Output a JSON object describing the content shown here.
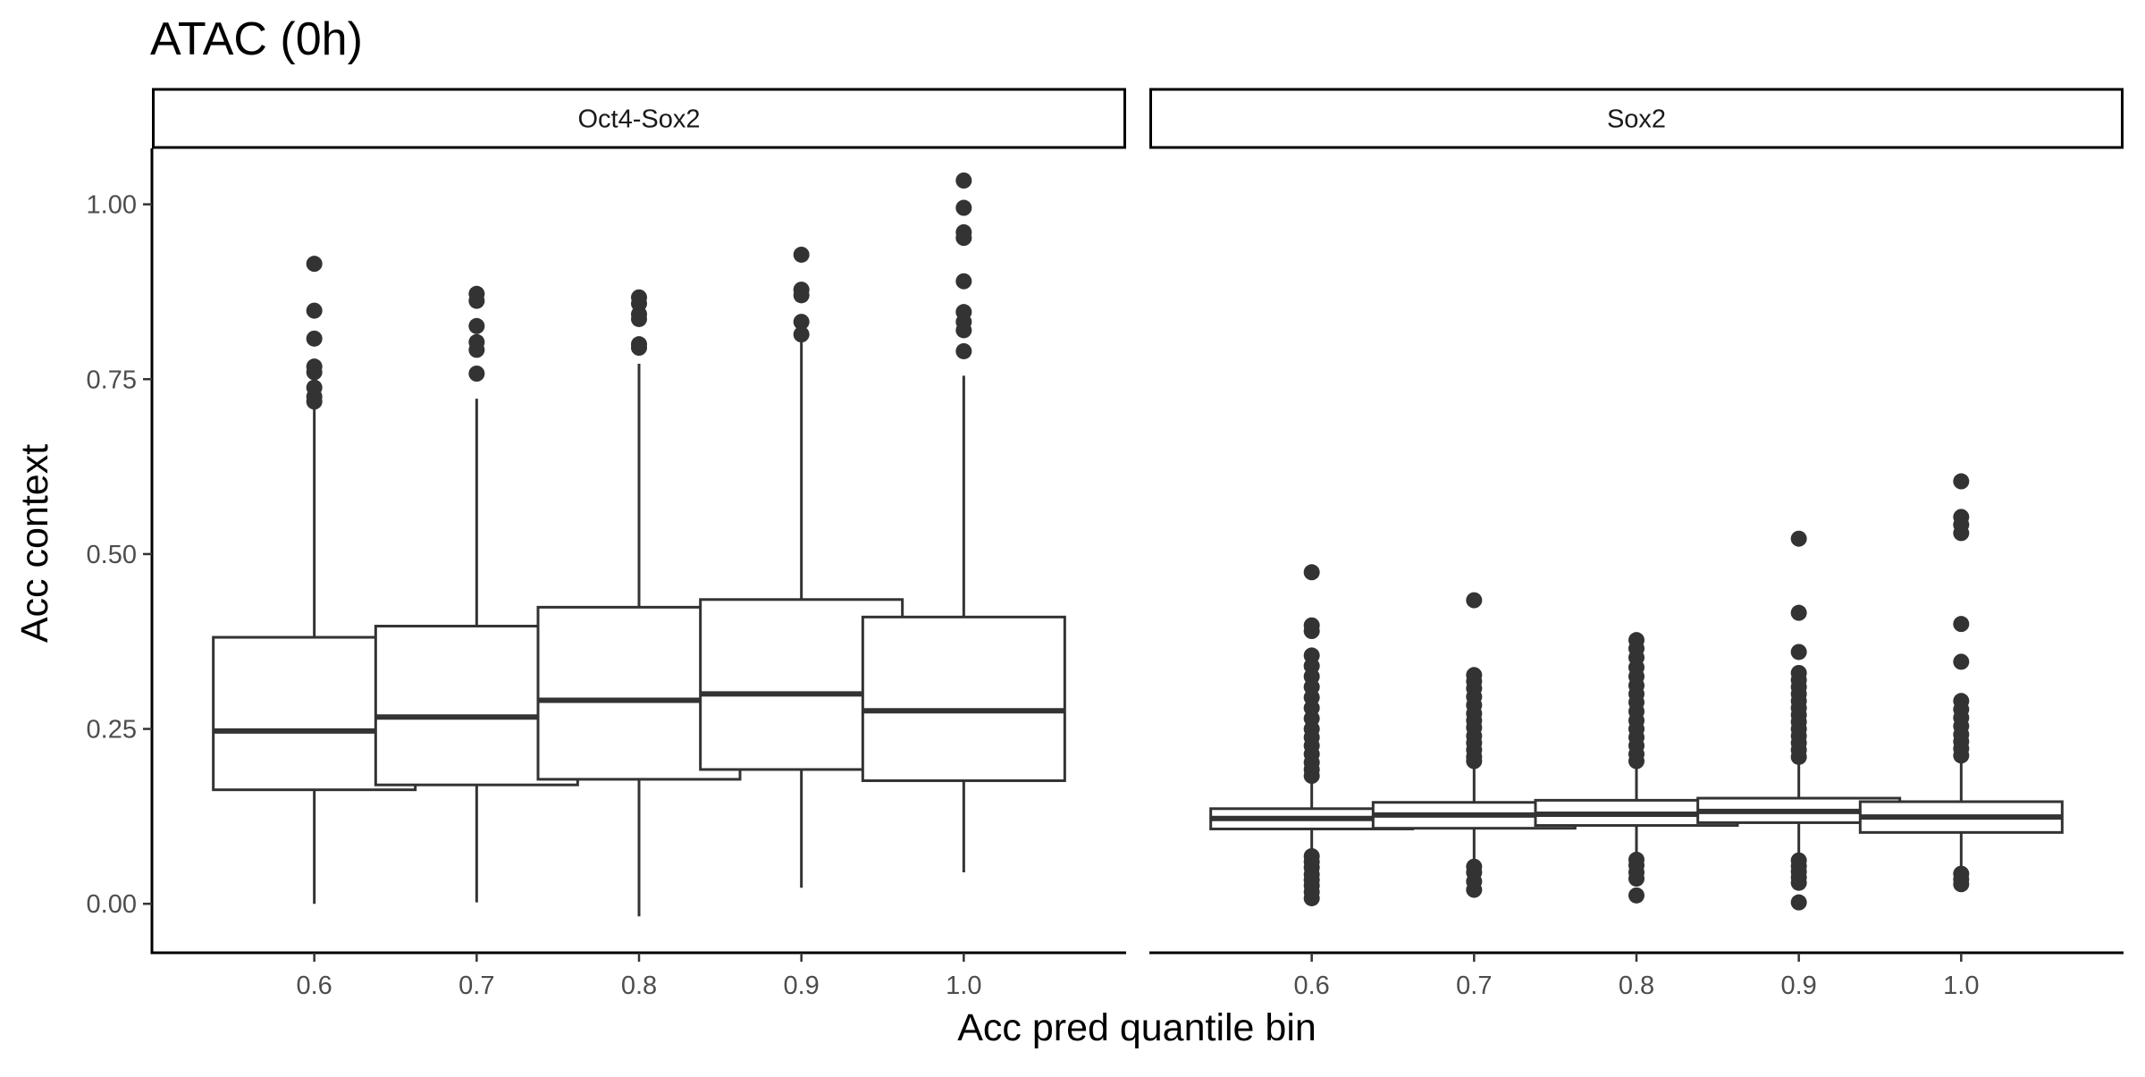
{
  "chart_data": {
    "type": "boxplot",
    "title": "ATAC (0h)",
    "xlabel": "Acc pred quantile bin",
    "ylabel": "Acc context",
    "categories": [
      "0.6",
      "0.7",
      "0.8",
      "0.9",
      "1.0"
    ],
    "ylim": [
      -0.07,
      1.08
    ],
    "yticks": [
      0.0,
      0.25,
      0.5,
      0.75,
      1.0
    ],
    "ytick_labels": [
      "0.00",
      "0.25",
      "0.50",
      "0.75",
      "1.00"
    ],
    "grid": false,
    "colors": {
      "box_line": "#333333",
      "box_fill": "#ffffff",
      "outlier": "#333333",
      "axis": "#000000"
    },
    "panels": [
      {
        "strip": "Oct4-Sox2",
        "boxes": [
          {
            "category": "0.6",
            "lower_whisker": 0.0,
            "q1": 0.163,
            "median": 0.247,
            "q3": 0.381,
            "upper_whisker": 0.715,
            "outliers": [
              0.915,
              0.848,
              0.808,
              0.768,
              0.76,
              0.738,
              0.725,
              0.718
            ]
          },
          {
            "category": "0.7",
            "lower_whisker": 0.002,
            "q1": 0.17,
            "median": 0.267,
            "q3": 0.397,
            "upper_whisker": 0.722,
            "outliers": [
              0.872,
              0.862,
              0.826,
              0.803,
              0.792,
              0.758
            ]
          },
          {
            "category": "0.8",
            "lower_whisker": -0.018,
            "q1": 0.178,
            "median": 0.291,
            "q3": 0.424,
            "upper_whisker": 0.772,
            "outliers": [
              0.867,
              0.858,
              0.843,
              0.836,
              0.8,
              0.795
            ]
          },
          {
            "category": "0.9",
            "lower_whisker": 0.023,
            "q1": 0.192,
            "median": 0.3,
            "q3": 0.435,
            "upper_whisker": 0.806,
            "outliers": [
              0.928,
              0.878,
              0.87,
              0.832,
              0.814
            ]
          },
          {
            "category": "1.0",
            "lower_whisker": 0.045,
            "q1": 0.176,
            "median": 0.276,
            "q3": 0.41,
            "upper_whisker": 0.755,
            "outliers": [
              1.034,
              0.995,
              0.96,
              0.952,
              0.89,
              0.846,
              0.832,
              0.82,
              0.79
            ]
          }
        ]
      },
      {
        "strip": "Sox2",
        "boxes": [
          {
            "category": "0.6",
            "lower_whisker": 0.072,
            "q1": 0.107,
            "median": 0.122,
            "q3": 0.136,
            "upper_whisker": 0.176,
            "outliers": [
              0.474,
              0.398,
              0.39,
              0.355,
              0.34,
              0.325,
              0.31,
              0.295,
              0.28,
              0.265,
              0.25,
              0.238,
              0.226,
              0.214,
              0.202,
              0.192,
              0.183,
              0.068,
              0.06,
              0.052,
              0.042,
              0.034,
              0.026,
              0.017,
              0.008
            ]
          },
          {
            "category": "0.7",
            "lower_whisker": 0.058,
            "q1": 0.108,
            "median": 0.127,
            "q3": 0.145,
            "upper_whisker": 0.198,
            "outliers": [
              0.434,
              0.327,
              0.318,
              0.308,
              0.296,
              0.284,
              0.272,
              0.262,
              0.252,
              0.24,
              0.23,
              0.22,
              0.21,
              0.204,
              0.053,
              0.045,
              0.032,
              0.02
            ]
          },
          {
            "category": "0.8",
            "lower_whisker": 0.068,
            "q1": 0.112,
            "median": 0.128,
            "q3": 0.148,
            "upper_whisker": 0.195,
            "outliers": [
              0.377,
              0.365,
              0.352,
              0.338,
              0.325,
              0.312,
              0.3,
              0.288,
              0.275,
              0.262,
              0.25,
              0.238,
              0.226,
              0.214,
              0.204,
              0.063,
              0.055,
              0.045,
              0.036,
              0.012
            ]
          },
          {
            "category": "0.9",
            "lower_whisker": 0.068,
            "q1": 0.116,
            "median": 0.132,
            "q3": 0.151,
            "upper_whisker": 0.2,
            "outliers": [
              0.522,
              0.416,
              0.36,
              0.33,
              0.32,
              0.31,
              0.3,
              0.29,
              0.28,
              0.27,
              0.26,
              0.25,
              0.24,
              0.23,
              0.22,
              0.21,
              0.062,
              0.054,
              0.046,
              0.038,
              0.03,
              0.002
            ]
          },
          {
            "category": "1.0",
            "lower_whisker": 0.048,
            "q1": 0.102,
            "median": 0.124,
            "q3": 0.146,
            "upper_whisker": 0.207,
            "outliers": [
              0.604,
              0.553,
              0.542,
              0.53,
              0.4,
              0.346,
              0.29,
              0.278,
              0.266,
              0.254,
              0.242,
              0.232,
              0.222,
              0.212,
              0.043,
              0.035,
              0.028
            ]
          }
        ]
      }
    ]
  }
}
